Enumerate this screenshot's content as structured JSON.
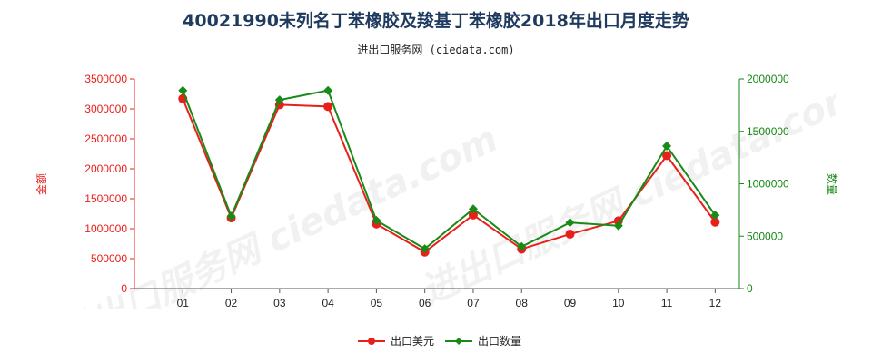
{
  "title": "40021990未列名丁苯橡胶及羧基丁苯橡胶2018年出口月度走势",
  "subtitle": "进出口服务网 (ciedata.com)",
  "watermark": "进出口服务网 ciedata.com",
  "colors": {
    "left_axis": "#e8201a",
    "right_axis": "#178a17",
    "series_value": "#e8201a",
    "series_qty": "#178a17"
  },
  "chart_data": {
    "type": "line",
    "title": "40021990未列名丁苯橡胶及羧基丁苯橡胶2018年出口月度走势",
    "categories": [
      "01",
      "02",
      "03",
      "04",
      "05",
      "06",
      "07",
      "08",
      "09",
      "10",
      "11",
      "12"
    ],
    "left_axis": {
      "label": "金额",
      "ylim": [
        0,
        3500000
      ],
      "ticks": [
        "0",
        "500000",
        "1000000",
        "1500000",
        "2000000",
        "2500000",
        "3000000",
        "3500000"
      ]
    },
    "right_axis": {
      "label": "数量",
      "ylim": [
        0,
        2000000
      ],
      "ticks": [
        "0",
        "500000",
        "1000000",
        "1500000",
        "2000000"
      ]
    },
    "series": [
      {
        "name": "出口美元",
        "axis": "left",
        "values": [
          3170000,
          1180000,
          3070000,
          3040000,
          1080000,
          610000,
          1230000,
          660000,
          910000,
          1130000,
          2220000,
          1110000
        ]
      },
      {
        "name": "出口数量",
        "axis": "right",
        "values": [
          1890000,
          690000,
          1800000,
          1890000,
          650000,
          380000,
          760000,
          400000,
          630000,
          600000,
          1360000,
          700000
        ]
      }
    ],
    "legend": "bottom-center",
    "grid": false
  }
}
